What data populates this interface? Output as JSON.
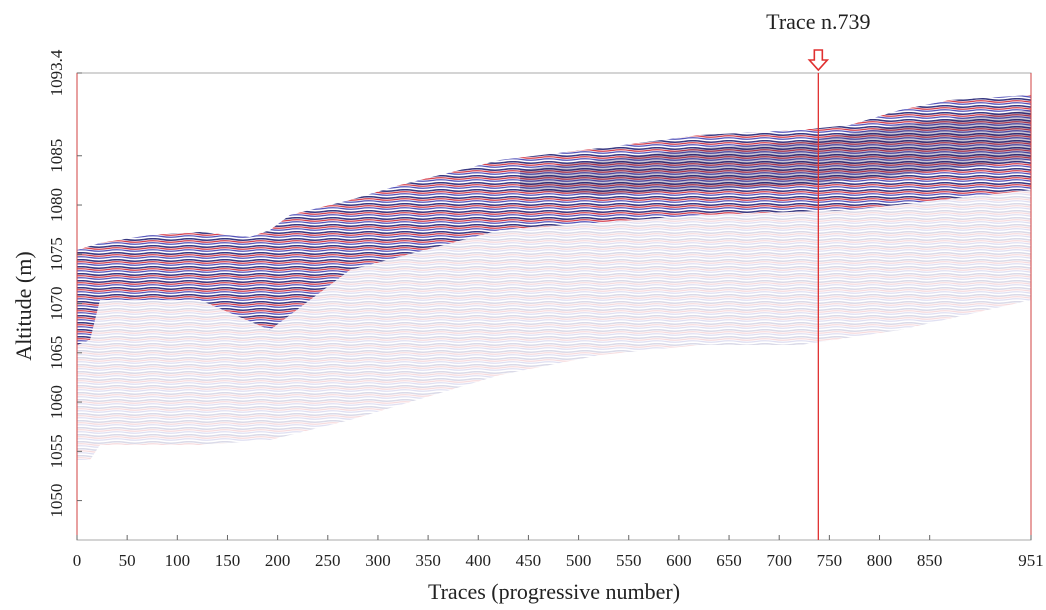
{
  "chart_data": {
    "type": "radargram",
    "x_label": "Traces (progressive number)",
    "y_label": "Altitude (m)",
    "xlim": [
      0,
      951
    ],
    "xticks": [
      0,
      50,
      100,
      150,
      200,
      250,
      300,
      350,
      400,
      450,
      500,
      550,
      600,
      650,
      700,
      750,
      800,
      850,
      951
    ],
    "ylim": [
      1046,
      1093.4
    ],
    "yticks": [
      1050,
      1055,
      1060,
      1065,
      1070,
      1075,
      1080,
      1085,
      1093.4
    ],
    "annotations": [
      {
        "text": "Trace n.739",
        "x": 739,
        "color": "#e03030"
      }
    ]
  }
}
